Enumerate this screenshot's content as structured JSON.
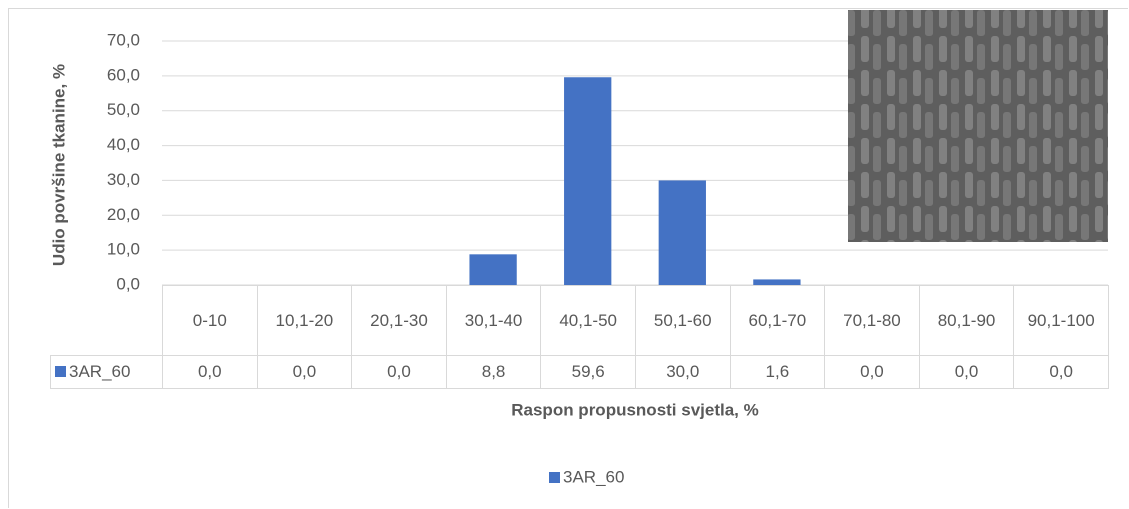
{
  "chart_data": {
    "type": "bar",
    "y_label": "Udio površine tkanine, %",
    "x_label": "Raspon propusnosti svjetla, %",
    "categories": [
      "0-10",
      "10,1-20",
      "20,1-30",
      "30,1-40",
      "40,1-50",
      "50,1-60",
      "60,1-70",
      "70,1-80",
      "80,1-90",
      "90,1-100"
    ],
    "series": [
      {
        "name": "3AR_60",
        "color": "#4472c4",
        "values": [
          0,
          0,
          0,
          8.8,
          59.6,
          30,
          1.6,
          0,
          0,
          0
        ],
        "value_labels": [
          "0,0",
          "0,0",
          "0,0",
          "8,8",
          "59,6",
          "30,0",
          "1,6",
          "0,0",
          "0,0",
          "0,0"
        ]
      }
    ],
    "ylim": [
      0,
      70
    ],
    "yticks": [
      {
        "value": 0,
        "label": "0,0"
      },
      {
        "value": 10,
        "label": "10,0"
      },
      {
        "value": 20,
        "label": "20,0"
      },
      {
        "value": 30,
        "label": "30,0"
      },
      {
        "value": 40,
        "label": "40,0"
      },
      {
        "value": 50,
        "label": "50,0"
      },
      {
        "value": 60,
        "label": "60,0"
      },
      {
        "value": 70,
        "label": "70,0"
      }
    ],
    "grid": true,
    "legend": "bottom"
  }
}
